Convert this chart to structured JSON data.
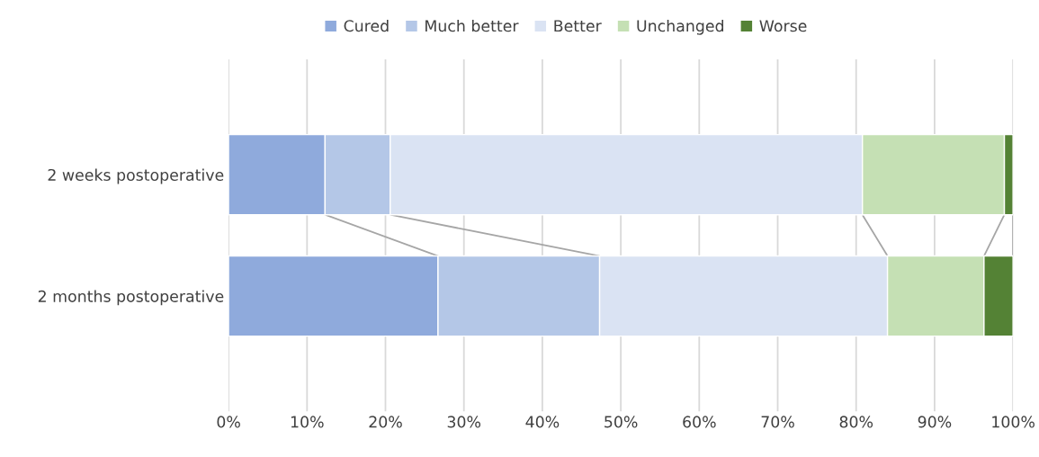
{
  "chart_data": {
    "type": "bar",
    "orientation": "horizontal",
    "stacked": true,
    "categories": [
      "2 weeks postoperative",
      "2 months postoperative"
    ],
    "series": [
      {
        "name": "Cured",
        "color": "#8faadc",
        "values": [
          12.3,
          26.7
        ]
      },
      {
        "name": "Much better",
        "color": "#b4c7e7",
        "values": [
          8.3,
          20.6
        ]
      },
      {
        "name": "Better",
        "color": "#dae3f3",
        "values": [
          60.2,
          36.7
        ]
      },
      {
        "name": "Unchanged",
        "color": "#c5e0b4",
        "values": [
          18.1,
          12.3
        ]
      },
      {
        "name": "Worse",
        "color": "#548235",
        "values": [
          1.1,
          3.7
        ]
      }
    ],
    "xlim": [
      0,
      100
    ],
    "xticks": [
      {
        "value": 0,
        "label": "0%"
      },
      {
        "value": 10,
        "label": "10%"
      },
      {
        "value": 20,
        "label": "20%"
      },
      {
        "value": 30,
        "label": "30%"
      },
      {
        "value": 40,
        "label": "40%"
      },
      {
        "value": 50,
        "label": "50%"
      },
      {
        "value": 60,
        "label": "60%"
      },
      {
        "value": 70,
        "label": "70%"
      },
      {
        "value": 80,
        "label": "80%"
      },
      {
        "value": 90,
        "label": "90%"
      },
      {
        "value": 100,
        "label": "100%"
      }
    ],
    "grid": "x",
    "legend": "top"
  }
}
